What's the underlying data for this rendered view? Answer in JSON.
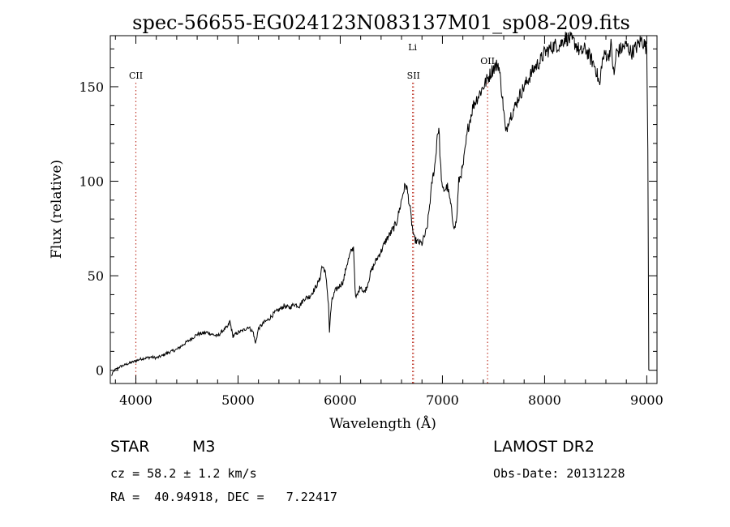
{
  "chart_data": {
    "type": "line",
    "title": "spec-56655-EG024123N083137M01_sp08-209.fits",
    "xlabel": "Wavelength (Å)",
    "ylabel": "Flux (relative)",
    "xlim": [
      3750,
      9100
    ],
    "ylim": [
      -7,
      177
    ],
    "xticks": [
      4000,
      5000,
      6000,
      7000,
      8000,
      9000
    ],
    "yticks": [
      0,
      50,
      100,
      150
    ],
    "grid": false,
    "series": [
      {
        "color": "#000000",
        "points": [
          [
            3760,
            -3
          ],
          [
            3790,
            0
          ],
          [
            3820,
            1
          ],
          [
            3850,
            2
          ],
          [
            3900,
            3
          ],
          [
            3950,
            4
          ],
          [
            4000,
            5
          ],
          [
            4050,
            6
          ],
          [
            4100,
            6.5
          ],
          [
            4150,
            7
          ],
          [
            4200,
            6.5
          ],
          [
            4250,
            7.5
          ],
          [
            4300,
            9
          ],
          [
            4350,
            10
          ],
          [
            4400,
            11
          ],
          [
            4450,
            13
          ],
          [
            4500,
            15
          ],
          [
            4550,
            17
          ],
          [
            4600,
            19
          ],
          [
            4650,
            19.5
          ],
          [
            4700,
            20
          ],
          [
            4750,
            19
          ],
          [
            4800,
            18
          ],
          [
            4850,
            21
          ],
          [
            4900,
            23
          ],
          [
            4920,
            26
          ],
          [
            4950,
            18
          ],
          [
            5000,
            20
          ],
          [
            5050,
            21
          ],
          [
            5100,
            23
          ],
          [
            5150,
            20
          ],
          [
            5170,
            14
          ],
          [
            5200,
            22
          ],
          [
            5250,
            25
          ],
          [
            5300,
            27
          ],
          [
            5350,
            30
          ],
          [
            5400,
            32
          ],
          [
            5450,
            34
          ],
          [
            5500,
            33
          ],
          [
            5550,
            35
          ],
          [
            5600,
            34
          ],
          [
            5650,
            38
          ],
          [
            5700,
            39
          ],
          [
            5750,
            43
          ],
          [
            5800,
            48
          ],
          [
            5820,
            55
          ],
          [
            5850,
            53
          ],
          [
            5870,
            44
          ],
          [
            5885,
            35
          ],
          [
            5895,
            20
          ],
          [
            5905,
            30
          ],
          [
            5920,
            37
          ],
          [
            5950,
            42
          ],
          [
            6000,
            45
          ],
          [
            6030,
            47
          ],
          [
            6060,
            55
          ],
          [
            6100,
            62
          ],
          [
            6130,
            65
          ],
          [
            6150,
            38
          ],
          [
            6170,
            40
          ],
          [
            6200,
            45
          ],
          [
            6230,
            41
          ],
          [
            6260,
            44
          ],
          [
            6300,
            52
          ],
          [
            6350,
            58
          ],
          [
            6400,
            63
          ],
          [
            6450,
            69
          ],
          [
            6500,
            73
          ],
          [
            6550,
            78
          ],
          [
            6580,
            85
          ],
          [
            6600,
            90
          ],
          [
            6620,
            95
          ],
          [
            6640,
            98
          ],
          [
            6650,
            97
          ],
          [
            6680,
            87
          ],
          [
            6700,
            78
          ],
          [
            6720,
            70
          ],
          [
            6750,
            68
          ],
          [
            6800,
            67
          ],
          [
            6850,
            75
          ],
          [
            6880,
            90
          ],
          [
            6900,
            100
          ],
          [
            6930,
            110
          ],
          [
            6950,
            125
          ],
          [
            6965,
            128
          ],
          [
            6980,
            110
          ],
          [
            7000,
            95
          ],
          [
            7050,
            97
          ],
          [
            7080,
            88
          ],
          [
            7100,
            80
          ],
          [
            7120,
            75
          ],
          [
            7140,
            80
          ],
          [
            7160,
            100
          ],
          [
            7200,
            107
          ],
          [
            7250,
            128
          ],
          [
            7280,
            135
          ],
          [
            7300,
            140
          ],
          [
            7350,
            145
          ],
          [
            7400,
            150
          ],
          [
            7450,
            155
          ],
          [
            7500,
            160
          ],
          [
            7550,
            162
          ],
          [
            7580,
            148
          ],
          [
            7600,
            137
          ],
          [
            7620,
            125
          ],
          [
            7650,
            133
          ],
          [
            7700,
            138
          ],
          [
            7750,
            145
          ],
          [
            7800,
            150
          ],
          [
            7850,
            155
          ],
          [
            7900,
            160
          ],
          [
            7950,
            163
          ],
          [
            8000,
            168
          ],
          [
            8050,
            170
          ],
          [
            8100,
            172
          ],
          [
            8150,
            172
          ],
          [
            8200,
            176
          ],
          [
            8250,
            175
          ],
          [
            8300,
            173
          ],
          [
            8350,
            168
          ],
          [
            8400,
            170
          ],
          [
            8450,
            165
          ],
          [
            8500,
            160
          ],
          [
            8540,
            150
          ],
          [
            8560,
            163
          ],
          [
            8600,
            168
          ],
          [
            8620,
            165
          ],
          [
            8650,
            172
          ],
          [
            8680,
            155
          ],
          [
            8700,
            168
          ],
          [
            8750,
            170
          ],
          [
            8800,
            172
          ],
          [
            8850,
            168
          ],
          [
            8900,
            171
          ],
          [
            8950,
            175
          ],
          [
            8980,
            172
          ],
          [
            9000,
            170
          ],
          [
            9010,
            120
          ],
          [
            9020,
            0
          ]
        ]
      }
    ],
    "lines": [
      {
        "label": "CII",
        "x": 4000
      },
      {
        "label": "SII",
        "x": 6717
      },
      {
        "label": "Li",
        "x": 6708
      },
      {
        "label": "OII",
        "x": 7442
      }
    ]
  },
  "info": {
    "class_label": "STAR",
    "subclass": "M3",
    "survey": "LAMOST DR2",
    "cz": "cz = 58.2 ± 1.2 km/s",
    "obs_date": "Obs-Date: 20131228",
    "coords": "RA =  40.94918, DEC =   7.22417"
  }
}
